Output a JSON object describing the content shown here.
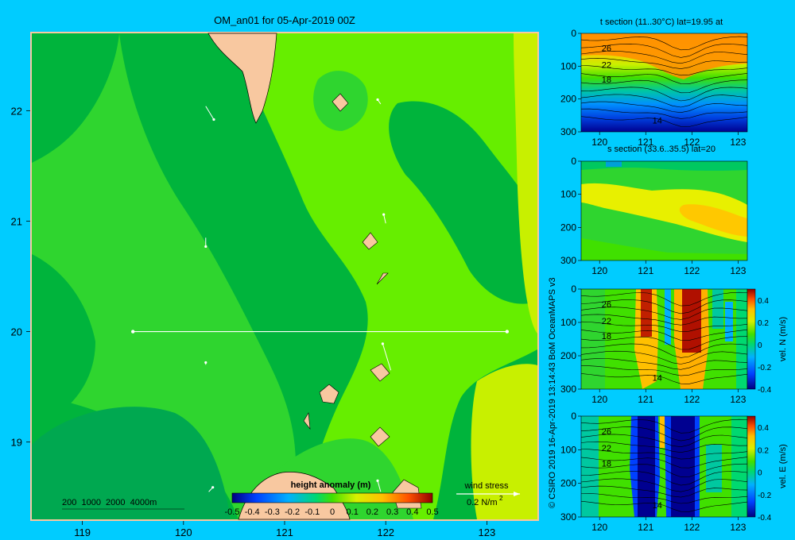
{
  "colors": {
    "background": "#00ccff",
    "land": "#f8c8a0",
    "green_dark": "#00b43c",
    "green_mid": "#2fd52f",
    "green_light": "#66ee00",
    "yellow_green": "#c8f000",
    "section_line": "#ffffff"
  },
  "credit": "© CSIRO 2019  16-Apr-2019 13:14:43 BoM OceanMAPS v3",
  "chart_data": [
    {
      "type": "heatmap",
      "title": "OM_an01 for 05-Apr-2019 00Z",
      "xlim": [
        118.5,
        123.5
      ],
      "ylim": [
        18.3,
        22.7
      ],
      "x_ticks": [
        119,
        120,
        121,
        122,
        123
      ],
      "x_tick_labels": [
        "119",
        "120",
        "121",
        "122",
        "123"
      ],
      "y_ticks": [
        19,
        20,
        21,
        22
      ],
      "y_tick_labels": [
        "19",
        "20",
        "21",
        "22"
      ],
      "colorbar": {
        "label": "height anomaly (m)",
        "range": [
          -0.5,
          0.5
        ],
        "ticks": [
          -0.5,
          -0.4,
          -0.3,
          -0.2,
          -0.1,
          0,
          0.1,
          0.2,
          0.3,
          0.4,
          0.5
        ],
        "tick_labels": [
          "-0.5",
          "-0.4",
          "-0.3",
          "-0.2",
          "-0.1",
          "0",
          "0.1",
          "0.2",
          "0.3",
          "0.4",
          "0.5"
        ]
      },
      "depth_legend": "200  1000  2000  4000m",
      "wind_legend": {
        "label": "wind stress",
        "value": "0.2 N/m",
        "exponent": "2"
      },
      "section_line": {
        "lat": 20,
        "lon_start": 119.5,
        "lon_end": 123.2
      },
      "wind_vectors": [
        {
          "lon": 120.22,
          "lat": 22.04,
          "dlon": 0.08,
          "dlat": -0.12
        },
        {
          "lon": 121.95,
          "lat": 22.06,
          "dlon": -0.03,
          "dlat": 0.04
        },
        {
          "lon": 120.22,
          "lat": 20.85,
          "dlon": 0.0,
          "dlat": -0.08
        },
        {
          "lon": 122.0,
          "lat": 20.98,
          "dlon": -0.02,
          "dlat": 0.08
        },
        {
          "lon": 122.05,
          "lat": 19.65,
          "dlon": -0.08,
          "dlat": 0.24
        },
        {
          "lon": 120.22,
          "lat": 19.7,
          "dlon": 0.0,
          "dlat": 0.02
        },
        {
          "lon": 120.25,
          "lat": 18.55,
          "dlon": 0.04,
          "dlat": 0.04
        },
        {
          "lon": 121.95,
          "lat": 18.55,
          "dlon": -0.03,
          "dlat": 0.1
        }
      ]
    },
    {
      "type": "heatmap",
      "title": "t section (11..30°C) lat=19.95 at",
      "xlim": [
        119.6,
        123.2
      ],
      "ylim": [
        300,
        0
      ],
      "x_ticks": [
        120,
        121,
        122,
        123
      ],
      "x_tick_labels": [
        "120",
        "121",
        "122",
        "123"
      ],
      "y_ticks": [
        0,
        100,
        200,
        300
      ],
      "y_tick_labels": [
        "0",
        "100",
        "200",
        "300"
      ],
      "contour_labels": [
        {
          "text": "26",
          "x": 120.15,
          "y": 45
        },
        {
          "text": "22",
          "x": 120.15,
          "y": 95
        },
        {
          "text": "18",
          "x": 120.15,
          "y": 140
        },
        {
          "text": "14",
          "x": 121.25,
          "y": 265
        }
      ]
    },
    {
      "type": "heatmap",
      "title": "s section (33.6..35.5) lat=20",
      "xlim": [
        119.6,
        123.2
      ],
      "ylim": [
        300,
        0
      ],
      "x_ticks": [
        120,
        121,
        122,
        123
      ],
      "x_tick_labels": [
        "120",
        "121",
        "122",
        "123"
      ],
      "y_ticks": [
        0,
        100,
        200,
        300
      ],
      "y_tick_labels": [
        "0",
        "100",
        "200",
        "300"
      ],
      "salinity_range": [
        33.6,
        35.5
      ]
    },
    {
      "type": "heatmap",
      "title": "",
      "xlim": [
        119.6,
        123.2
      ],
      "ylim": [
        300,
        0
      ],
      "x_ticks": [
        120,
        121,
        122,
        123
      ],
      "x_tick_labels": [
        "120",
        "121",
        "122",
        "123"
      ],
      "y_ticks": [
        0,
        100,
        200,
        300
      ],
      "y_tick_labels": [
        "0",
        "100",
        "200",
        "300"
      ],
      "colorbar": {
        "label": "vel. N (m/s)",
        "range": [
          -0.4,
          0.5
        ],
        "ticks": [
          -0.4,
          -0.2,
          0,
          0.2,
          0.4
        ],
        "tick_labels": [
          "-0.4",
          "-0.2",
          "0",
          "0.2",
          "0.4"
        ]
      },
      "contour_labels": [
        {
          "text": "26",
          "x": 120.15,
          "y": 45
        },
        {
          "text": "22",
          "x": 120.15,
          "y": 95
        },
        {
          "text": "18",
          "x": 120.15,
          "y": 140
        },
        {
          "text": "14",
          "x": 121.25,
          "y": 265
        }
      ]
    },
    {
      "type": "heatmap",
      "title": "",
      "xlim": [
        119.6,
        123.2
      ],
      "ylim": [
        300,
        0
      ],
      "x_ticks": [
        120,
        121,
        122,
        123
      ],
      "x_tick_labels": [
        "120",
        "121",
        "122",
        "123"
      ],
      "y_ticks": [
        0,
        100,
        200,
        300
      ],
      "y_tick_labels": [
        "0",
        "100",
        "200",
        "300"
      ],
      "colorbar": {
        "label": "vel. E (m/s)",
        "range": [
          -0.4,
          0.5
        ],
        "ticks": [
          -0.4,
          -0.2,
          0,
          0.2,
          0.4
        ],
        "tick_labels": [
          "-0.4",
          "-0.2",
          "0",
          "0.2",
          "0.4"
        ]
      },
      "contour_labels": [
        {
          "text": "26",
          "x": 120.15,
          "y": 45
        },
        {
          "text": "22",
          "x": 120.15,
          "y": 95
        },
        {
          "text": "18",
          "x": 120.15,
          "y": 140
        },
        {
          "text": "14",
          "x": 121.25,
          "y": 265
        }
      ]
    }
  ]
}
